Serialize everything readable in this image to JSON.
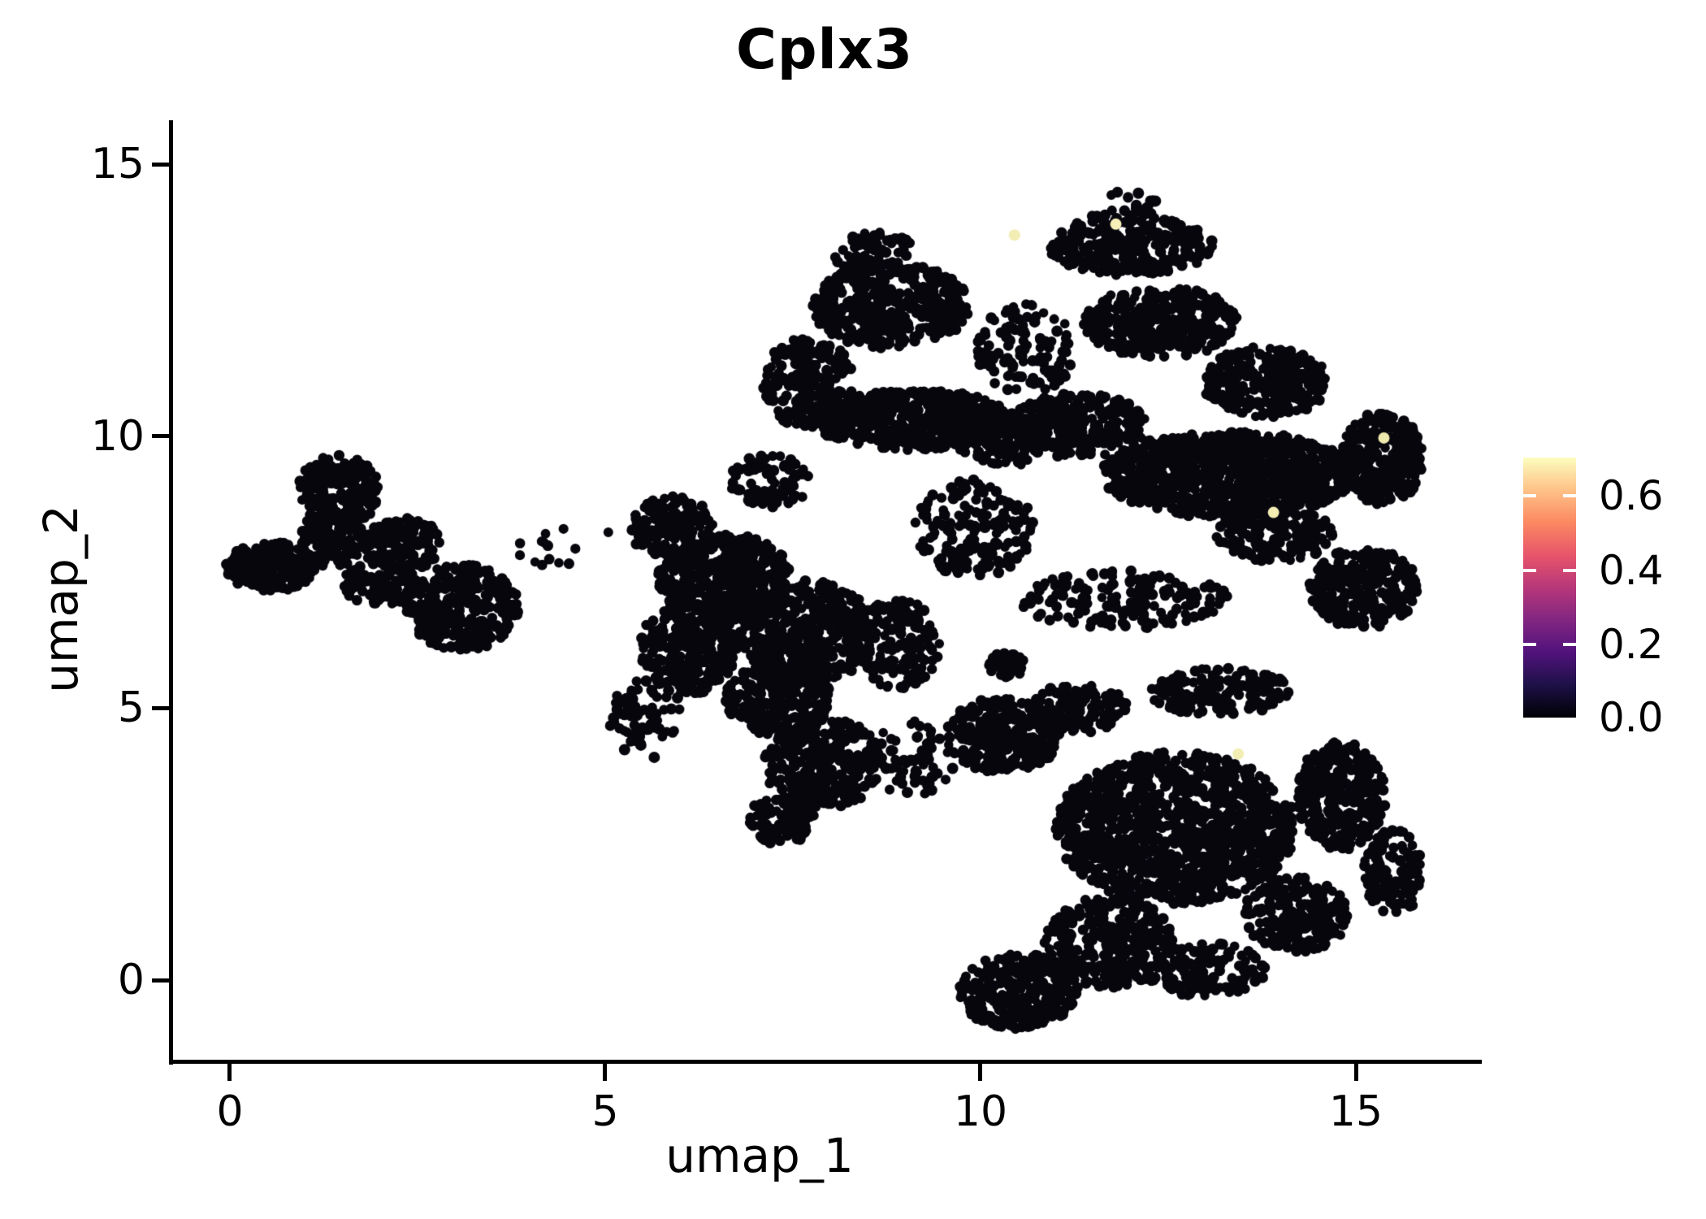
{
  "title": "Cplx3",
  "axes": {
    "x_label": "umap_1",
    "y_label": "umap_2",
    "x_tick_labels": [
      "0",
      "5",
      "10",
      "15"
    ],
    "y_tick_labels": [
      "15",
      "10",
      "5",
      "0"
    ]
  },
  "colorbar": {
    "labels": [
      "0.6",
      "0.4",
      "0.2",
      "0.0"
    ],
    "min": 0.0,
    "max": 0.7,
    "colormap": "magma",
    "stops": [
      "#000004 0%",
      "#1d1147 12.5%",
      "#51127c 25%",
      "#822681 37.5%",
      "#b73779 50%",
      "#e8556b 62.5%",
      "#fb8861 75%",
      "#fec287 87.5%",
      "#fcfdbf 100%"
    ]
  },
  "chart_data": {
    "type": "scatter",
    "title": "Cplx3",
    "xlabel": "umap_1",
    "ylabel": "umap_2",
    "xlim": [
      -0.79,
      16.62
    ],
    "ylim": [
      -1.49,
      15.78
    ],
    "x_ticks": [
      0,
      5,
      10,
      15
    ],
    "y_ticks": [
      0,
      5,
      10,
      15
    ],
    "grid": false,
    "legend_position": "right-colorbar",
    "color_scale": {
      "min": 0.0,
      "max": 0.7,
      "colormap": "magma",
      "tick_values": [
        0.0,
        0.2,
        0.4,
        0.6
      ]
    },
    "zero_expression_color": "#07060d",
    "point_radius_px": 6.4,
    "seed": 1337,
    "clusters": [
      {
        "cx": 1.45,
        "cy": 9.0,
        "rx": 0.55,
        "ry": 0.65,
        "n": 200
      },
      {
        "cx": 0.55,
        "cy": 7.6,
        "rx": 0.6,
        "ry": 0.45,
        "n": 230
      },
      {
        "cx": 1.35,
        "cy": 8.1,
        "rx": 0.45,
        "ry": 0.5,
        "n": 130
      },
      {
        "cx": 2.3,
        "cy": 8.0,
        "rx": 0.55,
        "ry": 0.5,
        "n": 160
      },
      {
        "cx": 3.1,
        "cy": 6.85,
        "rx": 0.75,
        "ry": 0.8,
        "n": 280
      },
      {
        "cx": 2.0,
        "cy": 7.3,
        "rx": 0.5,
        "ry": 0.4,
        "n": 90
      },
      {
        "cx": 4.5,
        "cy": 7.9,
        "rx": 0.8,
        "ry": 0.55,
        "n": 14
      },
      {
        "cx": 5.9,
        "cy": 8.3,
        "rx": 0.55,
        "ry": 0.6,
        "n": 160
      },
      {
        "cx": 6.6,
        "cy": 7.4,
        "rx": 0.9,
        "ry": 0.8,
        "n": 420
      },
      {
        "cx": 6.1,
        "cy": 6.1,
        "rx": 0.65,
        "ry": 0.85,
        "n": 280
      },
      {
        "cx": 7.7,
        "cy": 6.4,
        "rx": 0.9,
        "ry": 0.95,
        "n": 430
      },
      {
        "cx": 7.3,
        "cy": 5.2,
        "rx": 0.7,
        "ry": 0.7,
        "n": 250
      },
      {
        "cx": 7.9,
        "cy": 4.0,
        "rx": 0.8,
        "ry": 0.85,
        "n": 300
      },
      {
        "cx": 7.35,
        "cy": 2.95,
        "rx": 0.45,
        "ry": 0.45,
        "n": 90
      },
      {
        "cx": 8.9,
        "cy": 6.2,
        "rx": 0.55,
        "ry": 0.85,
        "n": 150
      },
      {
        "cx": 5.55,
        "cy": 4.8,
        "rx": 0.5,
        "ry": 0.75,
        "n": 70
      },
      {
        "cx": 7.2,
        "cy": 9.2,
        "rx": 0.55,
        "ry": 0.5,
        "n": 80
      },
      {
        "cx": 8.8,
        "cy": 12.4,
        "rx": 1.05,
        "ry": 0.8,
        "n": 380
      },
      {
        "cx": 7.7,
        "cy": 11.0,
        "rx": 0.6,
        "ry": 0.85,
        "n": 220
      },
      {
        "cx": 9.1,
        "cy": 10.3,
        "rx": 1.35,
        "ry": 0.55,
        "n": 520
      },
      {
        "cx": 8.6,
        "cy": 13.35,
        "rx": 0.55,
        "ry": 0.4,
        "n": 70
      },
      {
        "cx": 10.6,
        "cy": 11.6,
        "rx": 0.65,
        "ry": 0.85,
        "n": 110
      },
      {
        "cx": 12.0,
        "cy": 13.5,
        "rx": 1.1,
        "ry": 0.55,
        "n": 260
      },
      {
        "cx": 11.9,
        "cy": 14.2,
        "rx": 0.5,
        "ry": 0.3,
        "n": 25
      },
      {
        "cx": 12.4,
        "cy": 12.1,
        "rx": 1.05,
        "ry": 0.65,
        "n": 300
      },
      {
        "cx": 13.8,
        "cy": 11.0,
        "rx": 0.85,
        "ry": 0.65,
        "n": 280
      },
      {
        "cx": 13.3,
        "cy": 9.3,
        "rx": 1.7,
        "ry": 0.8,
        "n": 950
      },
      {
        "cx": 11.3,
        "cy": 10.2,
        "rx": 0.9,
        "ry": 0.6,
        "n": 260
      },
      {
        "cx": 15.35,
        "cy": 9.6,
        "rx": 0.55,
        "ry": 0.85,
        "n": 300
      },
      {
        "cx": 15.1,
        "cy": 7.2,
        "rx": 0.75,
        "ry": 0.75,
        "n": 260
      },
      {
        "cx": 11.9,
        "cy": 7.0,
        "rx": 1.4,
        "ry": 0.55,
        "n": 170
      },
      {
        "cx": 10.35,
        "cy": 5.8,
        "rx": 0.25,
        "ry": 0.22,
        "n": 60
      },
      {
        "cx": 13.9,
        "cy": 8.2,
        "rx": 0.8,
        "ry": 0.5,
        "n": 160
      },
      {
        "cx": 9.9,
        "cy": 8.3,
        "rx": 0.8,
        "ry": 0.9,
        "n": 170
      },
      {
        "cx": 10.3,
        "cy": 9.9,
        "rx": 0.6,
        "ry": 0.5,
        "n": 120
      },
      {
        "cx": 10.3,
        "cy": 4.5,
        "rx": 0.75,
        "ry": 0.7,
        "n": 260
      },
      {
        "cx": 12.6,
        "cy": 2.8,
        "rx": 1.6,
        "ry": 1.4,
        "n": 1150
      },
      {
        "cx": 14.8,
        "cy": 3.4,
        "rx": 0.6,
        "ry": 1.0,
        "n": 320
      },
      {
        "cx": 10.5,
        "cy": -0.2,
        "rx": 0.8,
        "ry": 0.7,
        "n": 280
      },
      {
        "cx": 11.7,
        "cy": 0.7,
        "rx": 0.85,
        "ry": 0.85,
        "n": 320
      },
      {
        "cx": 11.3,
        "cy": 5.0,
        "rx": 0.65,
        "ry": 0.45,
        "n": 130
      },
      {
        "cx": 13.2,
        "cy": 5.3,
        "rx": 0.95,
        "ry": 0.45,
        "n": 140
      },
      {
        "cx": 9.1,
        "cy": 4.1,
        "rx": 0.6,
        "ry": 0.7,
        "n": 60
      },
      {
        "cx": 15.5,
        "cy": 2.0,
        "rx": 0.4,
        "ry": 0.8,
        "n": 120
      },
      {
        "cx": 13.0,
        "cy": 0.2,
        "rx": 0.8,
        "ry": 0.5,
        "n": 150
      },
      {
        "cx": 14.2,
        "cy": 1.2,
        "rx": 0.7,
        "ry": 0.7,
        "n": 200
      }
    ],
    "highlighted_points": [
      {
        "x": 10.45,
        "y": 13.7,
        "value": 0.65,
        "color": "#f2edb3"
      },
      {
        "x": 11.8,
        "y": 13.9,
        "value": 0.7,
        "color": "#f6f0b8"
      },
      {
        "x": 15.37,
        "y": 9.97,
        "value": 0.6,
        "color": "#f0e9ae"
      },
      {
        "x": 13.9,
        "y": 8.6,
        "value": 0.65,
        "color": "#f2edb3"
      },
      {
        "x": 13.43,
        "y": 4.16,
        "value": 0.65,
        "color": "#f2edb3"
      }
    ]
  }
}
